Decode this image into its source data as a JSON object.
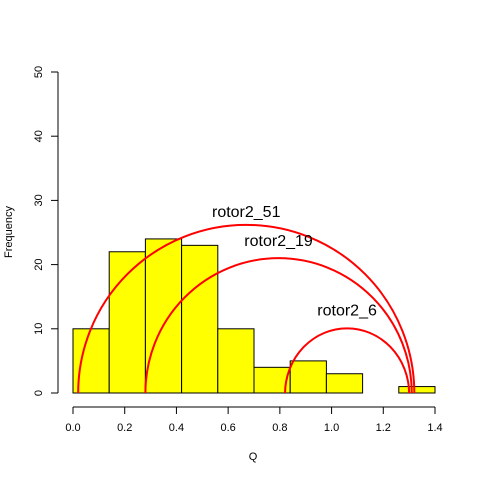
{
  "chart_data": {
    "type": "bar",
    "histogram_bins": [
      {
        "x0": 0.0,
        "x1": 0.14,
        "count": 10
      },
      {
        "x0": 0.14,
        "x1": 0.28,
        "count": 22
      },
      {
        "x0": 0.28,
        "x1": 0.42,
        "count": 24
      },
      {
        "x0": 0.42,
        "x1": 0.56,
        "count": 23
      },
      {
        "x0": 0.56,
        "x1": 0.7,
        "count": 10
      },
      {
        "x0": 0.7,
        "x1": 0.84,
        "count": 4
      },
      {
        "x0": 0.84,
        "x1": 0.98,
        "count": 5
      },
      {
        "x0": 0.98,
        "x1": 1.12,
        "count": 3
      },
      {
        "x0": 1.12,
        "x1": 1.26,
        "count": 0
      },
      {
        "x0": 1.26,
        "x1": 1.4,
        "count": 1
      }
    ],
    "arcs": [
      {
        "name": "rotor2_51",
        "x_start": 0.02,
        "x_end": 1.32,
        "peak": 26.2
      },
      {
        "name": "rotor2_19",
        "x_start": 0.28,
        "x_end": 1.31,
        "peak": 21.0
      },
      {
        "name": "rotor2_6",
        "x_start": 0.82,
        "x_end": 1.3,
        "peak": 10.2
      }
    ],
    "title": "",
    "xlabel": "Q",
    "ylabel": "Frequency",
    "xlim": [
      0.0,
      1.4
    ],
    "ylim": [
      0,
      50
    ],
    "xticks": [
      "0.0",
      "0.2",
      "0.4",
      "0.6",
      "0.8",
      "1.0",
      "1.2",
      "1.4"
    ],
    "yticks": [
      "0",
      "10",
      "20",
      "30",
      "40",
      "50"
    ],
    "grid": false,
    "colors": {
      "bar_fill": "#ffff00",
      "bar_stroke": "#000000",
      "arc": "#ff0000"
    }
  }
}
